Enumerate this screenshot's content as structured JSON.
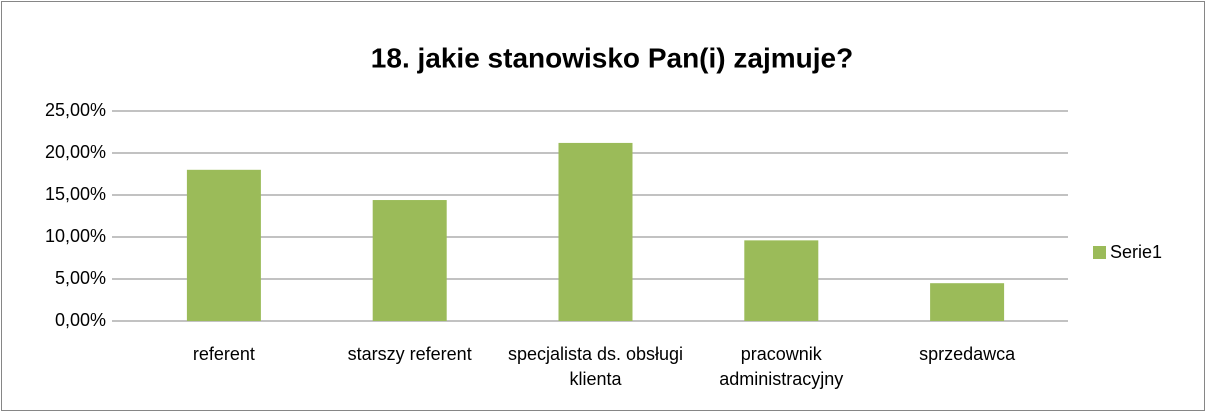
{
  "chart_data": {
    "type": "bar",
    "title": "18. jakie stanowisko Pan(i) zajmuje?",
    "categories": [
      "referent",
      "starszy referent",
      "specjalista ds. obsługi klienta",
      "pracownik administracyjny",
      "sprzedawca"
    ],
    "series": [
      {
        "name": "Serie1",
        "color": "#9bbb59",
        "values": [
          18,
          14.4,
          21.2,
          9.6,
          4.5
        ]
      }
    ],
    "ylim": [
      0,
      25
    ],
    "yticks": [
      {
        "value": 0,
        "label": "0,00%"
      },
      {
        "value": 5,
        "label": "5,00%"
      },
      {
        "value": 10,
        "label": "10,00%"
      },
      {
        "value": 15,
        "label": "15,00%"
      },
      {
        "value": 20,
        "label": "20,00%"
      },
      {
        "value": 25,
        "label": "25,00%"
      }
    ],
    "grid": true,
    "legend": "right"
  }
}
